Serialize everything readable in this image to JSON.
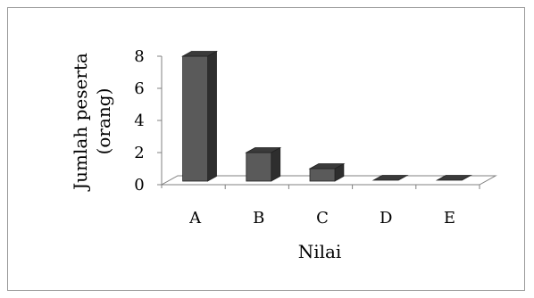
{
  "chart_data": {
    "type": "bar",
    "categories": [
      "A",
      "B",
      "C",
      "D",
      "E"
    ],
    "values": [
      8,
      2,
      1,
      0,
      0
    ],
    "title": "",
    "xlabel": "Nilai",
    "ylabel_lines": [
      "Jumlah peserta",
      "(orang)"
    ],
    "ylim": [
      0,
      8
    ],
    "yticks": [
      0,
      2,
      4,
      6,
      8
    ],
    "grid": false,
    "style": "3d-column",
    "colors": {
      "bar_front": "#5a5a5a",
      "bar_top": "#3a3a3a",
      "bar_side": "#2e2e2e",
      "floor_fill": "#ffffff",
      "axis": "#808080",
      "frame": "#9a9a9a"
    }
  }
}
